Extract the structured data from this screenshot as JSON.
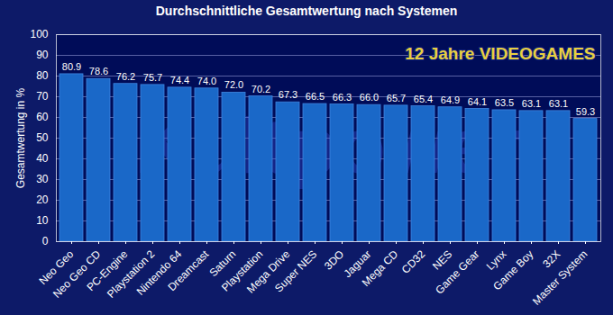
{
  "chart_data": {
    "type": "bar",
    "title": "Durchschnittliche Gesamtwertung nach Systemen",
    "y_label": "Gesamtwertung in %",
    "annotations": [
      "12 Jahre VIDEOGAMES",
      "Kultpower"
    ],
    "categories": [
      "Neo Geo",
      "Neo Geo CD",
      "PC-Engine",
      "Playstation 2",
      "Nintendo 64",
      "Dreamcast",
      "Saturn",
      "Playstation",
      "Mega Drive",
      "Super NES",
      "3DO",
      "Jaguar",
      "Mega CD",
      "CD32",
      "NES",
      "Game Gear",
      "Lynx",
      "Game Boy",
      "32X",
      "Master System"
    ],
    "values": [
      80.9,
      78.6,
      76.2,
      75.7,
      74.4,
      74.0,
      72.0,
      70.2,
      67.3,
      66.5,
      66.3,
      66.0,
      65.7,
      65.4,
      64.9,
      64.1,
      63.5,
      63.1,
      63.1,
      59.3
    ],
    "value_labels": [
      "80.9",
      "78.6",
      "76.2",
      "75.7",
      "74.4",
      "74.0",
      "72.0",
      "70.2",
      "67.3",
      "66.5",
      "66.3",
      "66.0",
      "65.7",
      "65.4",
      "64.9",
      "64.1",
      "63.5",
      "63.1",
      "63.1",
      "59.3"
    ],
    "color": "#1a68c8",
    "ylim": [
      0,
      100
    ],
    "yticks": [
      0,
      10,
      20,
      30,
      40,
      50,
      60,
      70,
      80,
      90,
      100
    ],
    "grid": true,
    "data_labels": true
  }
}
